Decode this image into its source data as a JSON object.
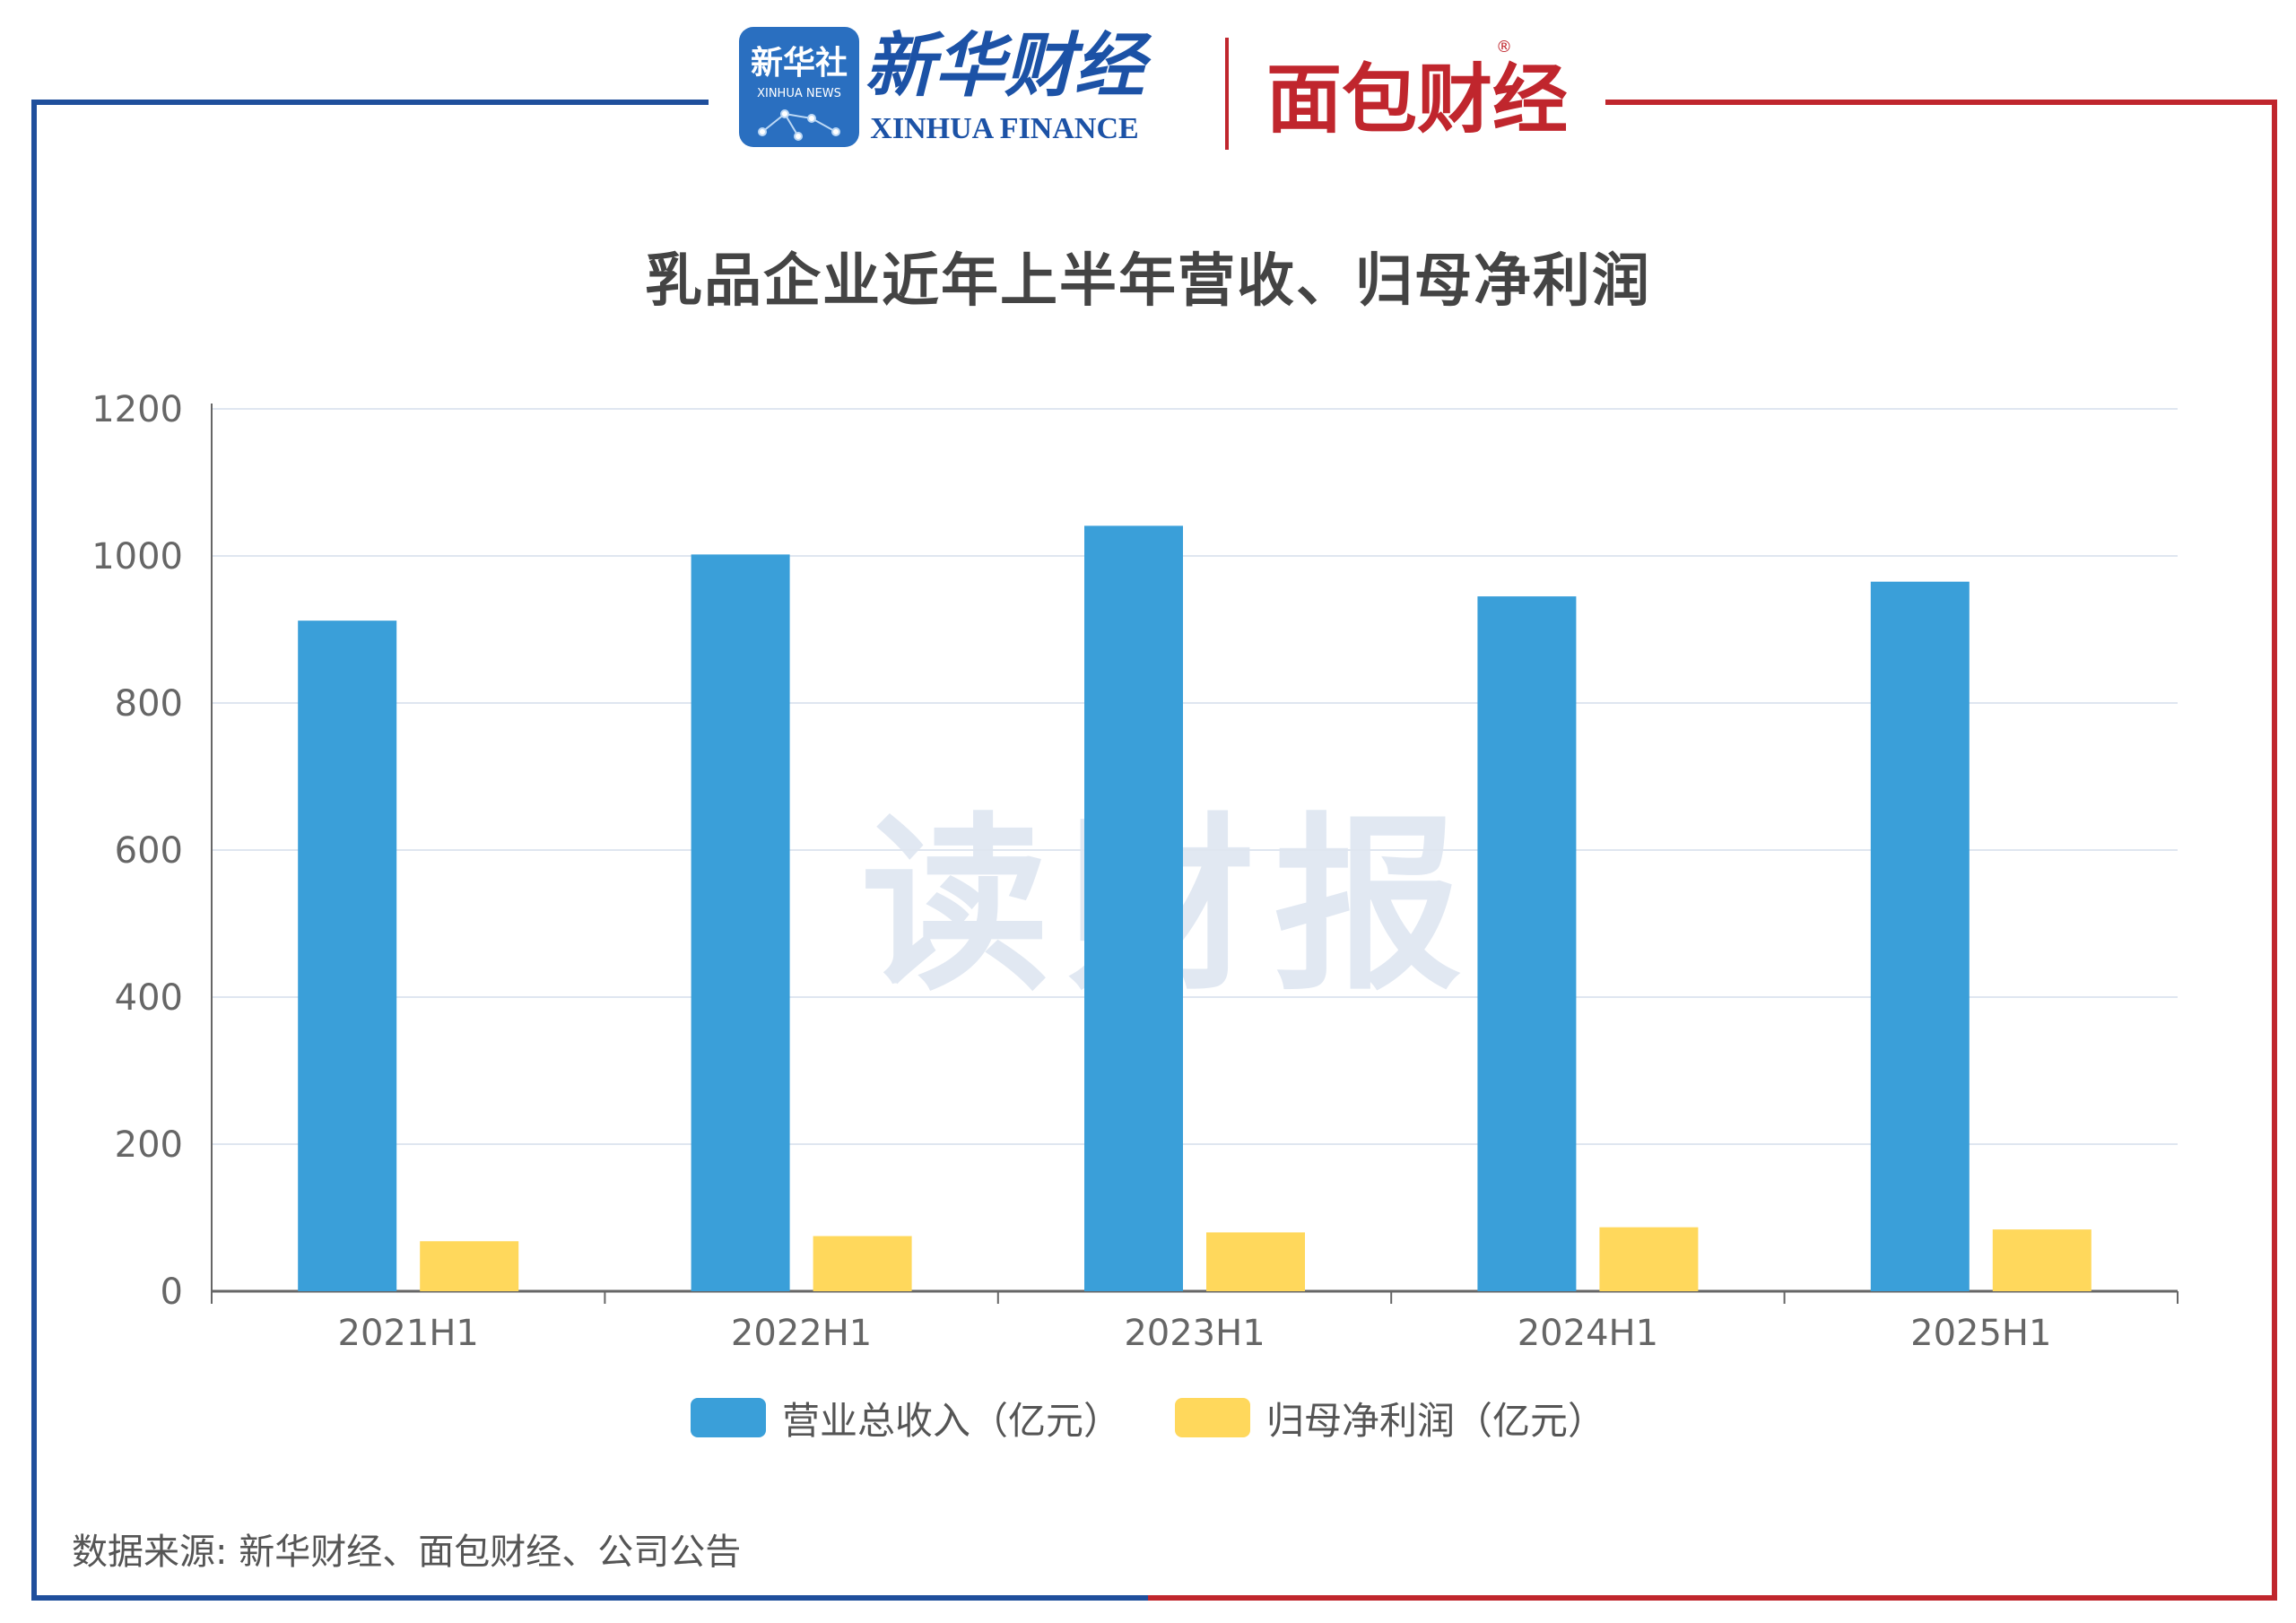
{
  "header": {
    "xinhua_badge": "新华社",
    "xinhua_badge_sub": "XINHUA NEWS",
    "xinhua_finance_cn": "新华财经",
    "xinhua_finance_en": "XINHUA FINANCE",
    "mianbao_logo": "面包财经",
    "registered_mark": "®"
  },
  "watermark": "读财报",
  "source_note": "数据来源: 新华财经、面包财经、公司公告",
  "colors": {
    "revenue": "#3a9fd9",
    "profit": "#ffd85c",
    "frame_left": "#1f4f9c",
    "frame_right": "#c0262d",
    "grid": "#dfe6f0",
    "axis": "#666666"
  },
  "chart_data": {
    "type": "bar",
    "title": "乳品企业近年上半年营收、归母净利润",
    "categories": [
      "2021H1",
      "2022H1",
      "2023H1",
      "2024H1",
      "2025H1"
    ],
    "series": [
      {
        "name": "营业总收入（亿元）",
        "values": [
          912,
          1002,
          1041,
          945,
          965
        ]
      },
      {
        "name": "归母净利润（亿元）",
        "values": [
          68,
          75,
          80,
          87,
          84
        ]
      }
    ],
    "ylim": [
      0,
      1200
    ],
    "yticks": [
      "0",
      "200",
      "400",
      "600",
      "800",
      "1000",
      "1200"
    ],
    "grid": true,
    "legend": "bottom"
  }
}
